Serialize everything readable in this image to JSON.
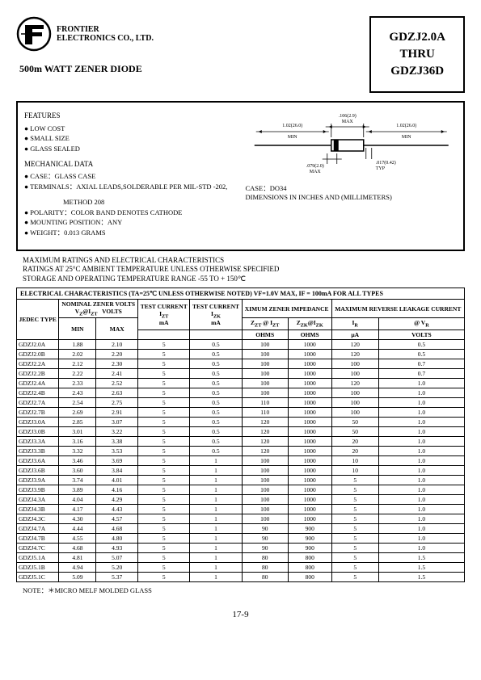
{
  "company": {
    "line1": "FRONTIER",
    "line2": "ELECTRONICS CO., LTD."
  },
  "product_title": "500m WATT ZENER DIODE",
  "part_box": {
    "line1": "GDZJ2.0A",
    "line2": "THRU",
    "line3": "GDZJ36D"
  },
  "features": {
    "heading": "FEATURES",
    "items": [
      "LOW COST",
      "SMALL SIZE",
      "GLASS SEALED"
    ]
  },
  "mechanical": {
    "heading": "MECHANICAL DATA",
    "case": "CASE：GLASS CASE",
    "terminals": "TERMINALS：AXIAL LEADS,SOLDERABLE PER MIL-STD -202,",
    "method": "METHOD 208",
    "polarity": "POLARITY：COLOR BAND DENOTES CATHODE",
    "mounting": "MOUNTING POSITION：ANY",
    "weight": "WEIGHT：0.013 GRAMS"
  },
  "diagram": {
    "d1": ".106(2.9)",
    "d1b": "MAX",
    "d2": "1.02(26.0)",
    "d2b": "MIN",
    "d3": "1.02(26.0)",
    "d3b": "MIN",
    "d4": ".079(2.0)",
    "d4b": "MAX",
    "d5": ".017(0.42)",
    "d5b": "TYP",
    "case_label": "CASE：DO34",
    "dims_label": "DIMENSIONS IN INCHES AND (MILLIMETERS)"
  },
  "ratings": {
    "line1": "MAXIMUM RATINGS AND ELECTRICAL CHARACTERISTICS",
    "line2": "RATINGS AT 25°C AMBIENT TEMPERATURE UNLESS OTHERWISE SPECIFIED",
    "line3": "STORAGE AND OPERATING TEMPERATURE RANGE -55 TO + 150℃"
  },
  "table": {
    "title": "ELECTRICAL CHARACTERISTICS (TA=25℃ UNLESS OTHERWISE NOTED) VF=1.0V MAX, IF = 100mA FOR ALL TYPES",
    "headers": {
      "jedec": "JEDEC TYPE",
      "nominal": "NOMINAL ZENER VOLTS",
      "vz": "V",
      "vz_sub": "Z",
      "vz_at": "@I",
      "vz_at_sub": "ZT",
      "vz_unit": "VOLTS",
      "min": "MIN",
      "max": "MAX",
      "test_izt": "TEST CURRENT",
      "izt": "I",
      "izt_sub": "ZT",
      "izt_unit": "mA",
      "test_izk": "TEST CURRENT",
      "izk": "I",
      "izk_sub": "ZK",
      "izk_unit": "mA",
      "impedance": "XIMUM ZENER IMPEDANCE",
      "zzt": "Z",
      "zzt_sub": "ZT",
      "zzt_at": " @ I",
      "zzt_at_sub": "ZT",
      "zzk": "Z",
      "zzk_sub": "ZK",
      "zzk_at": "@I",
      "zzk_at_sub": "ZK",
      "ohms": "OHMS",
      "leakage": "MAXIMUM REVERSE LEAKAGE CURRENT",
      "ir": "I",
      "ir_sub": "R",
      "ua": "µA",
      "vr": "@ V",
      "vr_sub": "R",
      "volts": "VOLTS"
    },
    "rows": [
      [
        "GDZJ2.0A",
        "1.88",
        "2.10",
        "5",
        "0.5",
        "100",
        "1000",
        "120",
        "0.5"
      ],
      [
        "GDZJ2.0B",
        "2.02",
        "2.20",
        "5",
        "0.5",
        "100",
        "1000",
        "120",
        "0.5"
      ],
      [
        "GDZJ2.2A",
        "2.12",
        "2.30",
        "5",
        "0.5",
        "100",
        "1000",
        "100",
        "0.7"
      ],
      [
        "GDZJ2.2B",
        "2.22",
        "2.41",
        "5",
        "0.5",
        "100",
        "1000",
        "100",
        "0.7"
      ],
      [
        "GDZJ2.4A",
        "2.33",
        "2.52",
        "5",
        "0.5",
        "100",
        "1000",
        "120",
        "1.0"
      ],
      [
        "GDZJ2.4B",
        "2.43",
        "2.63",
        "5",
        "0.5",
        "100",
        "1000",
        "100",
        "1.0"
      ],
      [
        "GDZJ2.7A",
        "2.54",
        "2.75",
        "5",
        "0.5",
        "110",
        "1000",
        "100",
        "1.0"
      ],
      [
        "GDZJ2.7B",
        "2.69",
        "2.91",
        "5",
        "0.5",
        "110",
        "1000",
        "100",
        "1.0"
      ],
      [
        "GDZJ3.0A",
        "2.85",
        "3.07",
        "5",
        "0.5",
        "120",
        "1000",
        "50",
        "1.0"
      ],
      [
        "GDZJ3.0B",
        "3.01",
        "3.22",
        "5",
        "0.5",
        "120",
        "1000",
        "50",
        "1.0"
      ],
      [
        "GDZJ3.3A",
        "3.16",
        "3.38",
        "5",
        "0.5",
        "120",
        "1000",
        "20",
        "1.0"
      ],
      [
        "GDZJ3.3B",
        "3.32",
        "3.53",
        "5",
        "0.5",
        "120",
        "1000",
        "20",
        "1.0"
      ],
      [
        "GDZJ3.6A",
        "3.46",
        "3.69",
        "5",
        "1",
        "100",
        "1000",
        "10",
        "1.0"
      ],
      [
        "GDZJ3.6B",
        "3.60",
        "3.84",
        "5",
        "1",
        "100",
        "1000",
        "10",
        "1.0"
      ],
      [
        "GDZJ3.9A",
        "3.74",
        "4.01",
        "5",
        "1",
        "100",
        "1000",
        "5",
        "1.0"
      ],
      [
        "GDZJ3.9B",
        "3.89",
        "4.16",
        "5",
        "1",
        "100",
        "1000",
        "5",
        "1.0"
      ],
      [
        "GDZJ4.3A",
        "4.04",
        "4.29",
        "5",
        "1",
        "100",
        "1000",
        "5",
        "1.0"
      ],
      [
        "GDZJ4.3B",
        "4.17",
        "4.43",
        "5",
        "1",
        "100",
        "1000",
        "5",
        "1.0"
      ],
      [
        "GDZJ4.3C",
        "4.30",
        "4.57",
        "5",
        "1",
        "100",
        "1000",
        "5",
        "1.0"
      ],
      [
        "GDZJ4.7A",
        "4.44",
        "4.68",
        "5",
        "1",
        "90",
        "900",
        "5",
        "1.0"
      ],
      [
        "GDZJ4.7B",
        "4.55",
        "4.80",
        "5",
        "1",
        "90",
        "900",
        "5",
        "1.0"
      ],
      [
        "GDZJ4.7C",
        "4.68",
        "4.93",
        "5",
        "1",
        "90",
        "900",
        "5",
        "1.0"
      ],
      [
        "GDZJ5.1A",
        "4.81",
        "5.07",
        "5",
        "1",
        "80",
        "800",
        "5",
        "1.5"
      ],
      [
        "GDZJ5.1B",
        "4.94",
        "5.20",
        "5",
        "1",
        "80",
        "800",
        "5",
        "1.5"
      ],
      [
        "GDZJ5.1C",
        "5.09",
        "5.37",
        "5",
        "1",
        "80",
        "800",
        "5",
        "1.5"
      ]
    ]
  },
  "note": "NOTE：＊MICRO MELF MOLDED GLASS",
  "page": "17-9"
}
